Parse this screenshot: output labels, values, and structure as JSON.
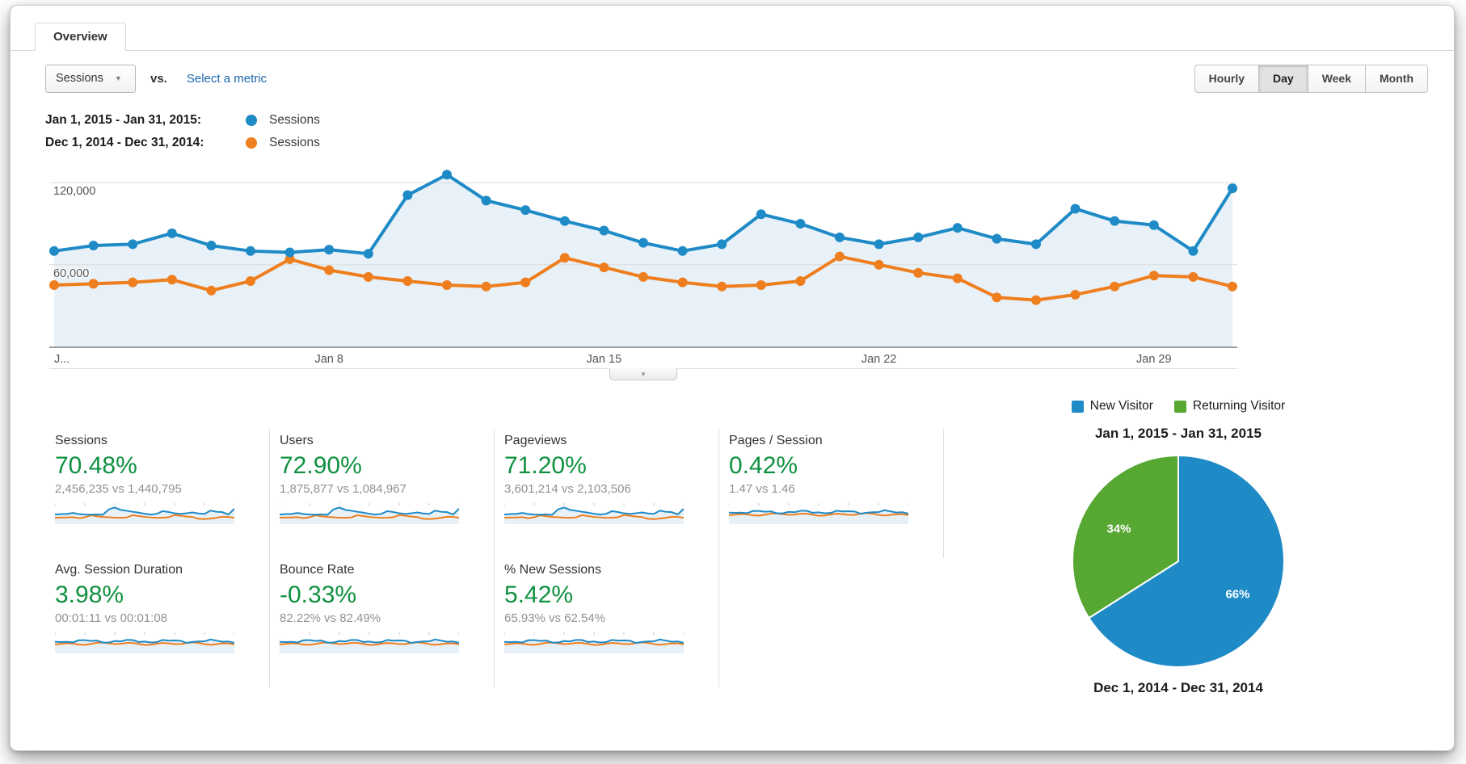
{
  "header": {
    "tab_label": "Overview"
  },
  "toolbar": {
    "metric_select": "Sessions",
    "vs_label": "vs.",
    "select_metric_link": "Select a metric",
    "granularity": [
      "Hourly",
      "Day",
      "Week",
      "Month"
    ],
    "active_granularity": "Day"
  },
  "series_legend": [
    {
      "range": "Jan 1, 2015 - Jan 31, 2015:",
      "metric": "Sessions"
    },
    {
      "range": "Dec 1, 2014 - Dec 31, 2014:",
      "metric": "Sessions"
    }
  ],
  "chart_data": [
    {
      "type": "line",
      "title": "Sessions by day, Jan 1 2015 - Jan 31 2015 vs Dec 1 2014 - Dec 31 2014",
      "xlabel": "",
      "ylabel": "Sessions",
      "ylim": [
        0,
        138000
      ],
      "yticks": [
        60000,
        120000
      ],
      "ytick_labels": [
        "60,000",
        "120,000"
      ],
      "xtick_days": [
        1,
        8,
        15,
        22,
        29
      ],
      "xtick_labels": [
        "J...",
        "Jan 8",
        "Jan 15",
        "Jan 22",
        "Jan 29"
      ],
      "grid": "horizontal",
      "legend_position": "top-left",
      "series": [
        {
          "name": "Jan 1, 2015 - Jan 31, 2015",
          "metric": "Sessions",
          "color": "#1e8ac6",
          "area_fill": "#e8f1f8",
          "values": [
            70000,
            74000,
            75000,
            83000,
            74000,
            70000,
            69000,
            71000,
            68000,
            111000,
            126000,
            107000,
            100000,
            92000,
            85000,
            76000,
            70000,
            75000,
            97000,
            90000,
            80000,
            75000,
            80000,
            87000,
            79000,
            75000,
            101000,
            92000,
            89000,
            70000,
            116000
          ]
        },
        {
          "name": "Dec 1, 2014 - Dec 31, 2014",
          "metric": "Sessions",
          "color": "#ee7e1e",
          "values": [
            45000,
            46000,
            47000,
            49000,
            41000,
            48000,
            64000,
            56000,
            51000,
            48000,
            45000,
            44000,
            47000,
            65000,
            58000,
            51000,
            47000,
            44000,
            45000,
            48000,
            66000,
            60000,
            54000,
            50000,
            36000,
            34000,
            38000,
            44000,
            52000,
            51000,
            44000
          ]
        }
      ]
    },
    {
      "type": "pie",
      "title": "Jan 1, 2015 - Jan 31, 2015",
      "footer": "Dec 1, 2014 - Dec 31, 2014",
      "legend_position": "top",
      "slices": [
        {
          "label": "New Visitor",
          "value": 66,
          "display": "66%",
          "color": "#1e8ac6"
        },
        {
          "label": "Returning Visitor",
          "value": 34,
          "display": "34%",
          "color": "#57a733"
        }
      ]
    }
  ],
  "metrics": [
    {
      "label": "Sessions",
      "change": "70.48%",
      "compare": "2,456,235 vs 1,440,795",
      "sparkline": "volume"
    },
    {
      "label": "Users",
      "change": "72.90%",
      "compare": "1,875,877 vs 1,084,967",
      "sparkline": "volume"
    },
    {
      "label": "Pageviews",
      "change": "71.20%",
      "compare": "3,601,214 vs 2,103,506",
      "sparkline": "volume"
    },
    {
      "label": "Pages / Session",
      "change": "0.42%",
      "compare": "1.47 vs 1.46",
      "sparkline": "flat"
    },
    {
      "label": "Avg. Session Duration",
      "change": "3.98%",
      "compare": "00:01:11 vs 00:01:08",
      "sparkline": "flat"
    },
    {
      "label": "Bounce Rate",
      "change": "-0.33%",
      "compare": "82.22% vs 82.49%",
      "sparkline": "flat"
    },
    {
      "label": "% New Sessions",
      "change": "5.42%",
      "compare": "65.93% vs 62.54%",
      "sparkline": "flat"
    }
  ],
  "colors": {
    "series_blue": "#1e8ac6",
    "series_orange": "#ee7e1e",
    "pie_green": "#57a733",
    "positive_green": "#0f9140",
    "link_blue": "#1b66ae",
    "area_fill": "#e8f1f8"
  }
}
